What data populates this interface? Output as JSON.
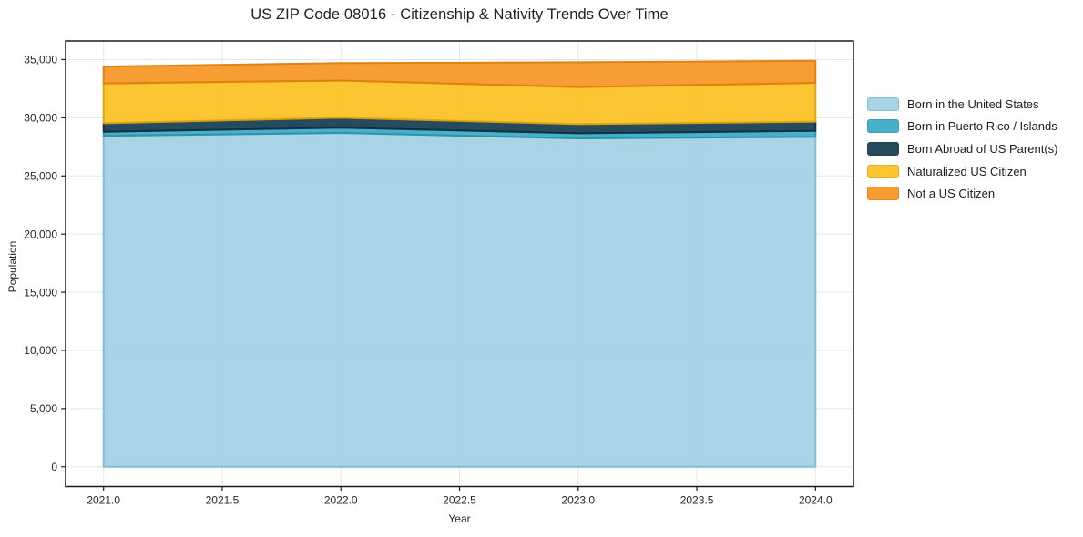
{
  "chart_data": {
    "type": "area",
    "stacked": true,
    "title": "US ZIP Code 08016 - Citizenship & Nativity Trends Over Time",
    "xlabel": "Year",
    "ylabel": "Population",
    "x": [
      2021,
      2022,
      2023,
      2024
    ],
    "series": [
      {
        "name": "Born in the United States",
        "values": [
          28450,
          28700,
          28230,
          28360
        ],
        "color": "#9FCFE3",
        "edge": "#7FB9D3"
      },
      {
        "name": "Born in Puerto Rico / Islands",
        "values": [
          350,
          450,
          440,
          520
        ],
        "color": "#35A7C3",
        "edge": "#2B91AA"
      },
      {
        "name": "Born Abroad of US Parent(s)",
        "values": [
          730,
          850,
          780,
          780
        ],
        "color": "#10374C",
        "edge": "#0E2E3F"
      },
      {
        "name": "Naturalized US Citizen",
        "values": [
          3420,
          3200,
          3190,
          3340
        ],
        "color": "#FCBF1C",
        "edge": "#DFA40D"
      },
      {
        "name": "Not a US Citizen",
        "values": [
          1450,
          1500,
          2130,
          1900
        ],
        "color": "#F6921E",
        "edge": "#DD7E0F"
      }
    ],
    "xticks": {
      "values": [
        2021.0,
        2021.5,
        2022.0,
        2022.5,
        2023.0,
        2023.5,
        2024.0
      ],
      "labels": [
        "2021.0",
        "2021.5",
        "2022.0",
        "2022.5",
        "2023.0",
        "2023.5",
        "2024.0"
      ]
    },
    "yticks": {
      "values": [
        0,
        5000,
        10000,
        15000,
        20000,
        25000,
        30000,
        35000
      ],
      "labels": [
        "0",
        "5,000",
        "10,000",
        "15,000",
        "20,000",
        "25,000",
        "30,000",
        "35,000"
      ]
    },
    "xlim": [
      2020.84,
      2024.16
    ],
    "ylim": [
      -1700,
      36600
    ],
    "grid": true,
    "legend_position": "right-outside",
    "fill_opacity": 0.9,
    "colors": {
      "grid": "#e7e7e7",
      "spine": "#1b1b1b",
      "tick": "#1b1b1b",
      "tick_label": "#262626",
      "background": "#ffffff"
    }
  }
}
